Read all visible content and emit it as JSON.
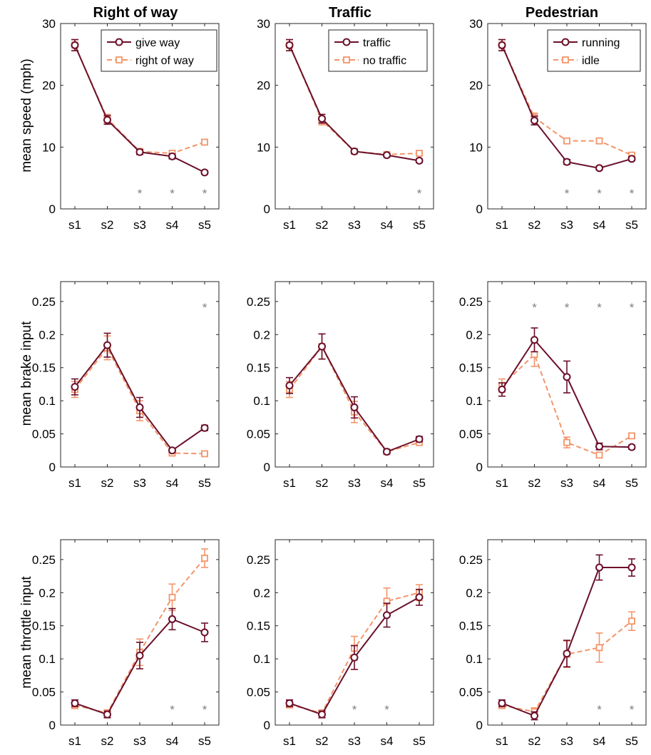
{
  "colors": {
    "dark": "#6b0f2a",
    "light": "#f4956a",
    "star": "#808080"
  },
  "categories": [
    "s1",
    "s2",
    "s3",
    "s4",
    "s5"
  ],
  "column_titles": [
    "Right of way",
    "Traffic",
    "Pedestrian"
  ],
  "row_ylabels": [
    "mean speed (mph)",
    "mean brake input",
    "mean throttle input"
  ],
  "chart_data": [
    {
      "type": "line",
      "row": 0,
      "col": 0,
      "title": "Right of way",
      "ylabel": "mean speed (mph)",
      "ylim": [
        0,
        30
      ],
      "yticks": [
        "0",
        "10",
        "20",
        "30"
      ],
      "categories": [
        "s1",
        "s2",
        "s3",
        "s4",
        "s5"
      ],
      "legend": true,
      "series": [
        {
          "name": "give way",
          "values": [
            26.5,
            14.4,
            9.2,
            8.5,
            5.9
          ],
          "err": [
            0.9,
            0.7,
            0.4,
            0.4,
            0.3
          ]
        },
        {
          "name": "right of way",
          "values": [
            26.5,
            14.6,
            9.3,
            9.0,
            10.8
          ],
          "err": [
            0.9,
            0.7,
            0.4,
            0.4,
            0.3
          ]
        }
      ],
      "significant": [
        "s3",
        "s4",
        "s5"
      ]
    },
    {
      "type": "line",
      "row": 0,
      "col": 1,
      "title": "Traffic",
      "ylabel": "",
      "ylim": [
        0,
        30
      ],
      "yticks": [
        "0",
        "10",
        "20",
        "30"
      ],
      "categories": [
        "s1",
        "s2",
        "s3",
        "s4",
        "s5"
      ],
      "legend": true,
      "series": [
        {
          "name": "traffic",
          "values": [
            26.5,
            14.6,
            9.3,
            8.7,
            7.8
          ],
          "err": [
            0.9,
            0.7,
            0.3,
            0.3,
            0.3
          ]
        },
        {
          "name": "no traffic",
          "values": [
            26.5,
            14.3,
            9.3,
            8.8,
            9.0
          ],
          "err": [
            0.9,
            0.7,
            0.3,
            0.3,
            0.3
          ]
        }
      ],
      "significant": [
        "s5"
      ]
    },
    {
      "type": "line",
      "row": 0,
      "col": 2,
      "title": "Pedestrian",
      "ylabel": "",
      "ylim": [
        0,
        30
      ],
      "yticks": [
        "0",
        "10",
        "20",
        "30"
      ],
      "categories": [
        "s1",
        "s2",
        "s3",
        "s4",
        "s5"
      ],
      "legend": true,
      "series": [
        {
          "name": "running",
          "values": [
            26.5,
            14.3,
            7.6,
            6.6,
            8.1
          ],
          "err": [
            0.9,
            0.7,
            0.4,
            0.3,
            0.3
          ]
        },
        {
          "name": "idle",
          "values": [
            26.5,
            14.8,
            11.0,
            11.0,
            8.7
          ],
          "err": [
            0.9,
            0.7,
            0.4,
            0.3,
            0.3
          ]
        }
      ],
      "significant": [
        "s3",
        "s4",
        "s5"
      ]
    },
    {
      "type": "line",
      "row": 1,
      "col": 0,
      "title": "",
      "ylabel": "mean brake input",
      "ylim": [
        0,
        0.28
      ],
      "yticks": [
        "0",
        "0.05",
        "0.1",
        "0.15",
        "0.2",
        "0.25"
      ],
      "categories": [
        "s1",
        "s2",
        "s3",
        "s4",
        "s5"
      ],
      "legend": false,
      "series": [
        {
          "name": "give way",
          "values": [
            0.121,
            0.184,
            0.09,
            0.025,
            0.059
          ],
          "err": [
            0.012,
            0.018,
            0.015,
            0.003,
            0.004
          ]
        },
        {
          "name": "right of way",
          "values": [
            0.117,
            0.18,
            0.085,
            0.021,
            0.02
          ],
          "err": [
            0.012,
            0.018,
            0.015,
            0.003,
            0.002
          ]
        }
      ],
      "significant": [
        "s5"
      ]
    },
    {
      "type": "line",
      "row": 1,
      "col": 1,
      "title": "",
      "ylabel": "",
      "ylim": [
        0,
        0.28
      ],
      "yticks": [
        "0",
        "0.05",
        "0.1",
        "0.15",
        "0.2",
        "0.25"
      ],
      "categories": [
        "s1",
        "s2",
        "s3",
        "s4",
        "s5"
      ],
      "legend": false,
      "series": [
        {
          "name": "traffic",
          "values": [
            0.123,
            0.182,
            0.09,
            0.023,
            0.042
          ],
          "err": [
            0.012,
            0.019,
            0.016,
            0.003,
            0.004
          ]
        },
        {
          "name": "no traffic",
          "values": [
            0.117,
            0.182,
            0.083,
            0.023,
            0.037
          ],
          "err": [
            0.012,
            0.019,
            0.016,
            0.003,
            0.004
          ]
        }
      ],
      "significant": []
    },
    {
      "type": "line",
      "row": 1,
      "col": 2,
      "title": "",
      "ylabel": "",
      "ylim": [
        0,
        0.28
      ],
      "yticks": [
        "0",
        "0.05",
        "0.1",
        "0.15",
        "0.2",
        "0.25"
      ],
      "categories": [
        "s1",
        "s2",
        "s3",
        "s4",
        "s5"
      ],
      "legend": false,
      "series": [
        {
          "name": "running",
          "values": [
            0.117,
            0.192,
            0.136,
            0.031,
            0.03
          ],
          "err": [
            0.01,
            0.018,
            0.024,
            0.005,
            0.003
          ]
        },
        {
          "name": "idle",
          "values": [
            0.123,
            0.17,
            0.037,
            0.018,
            0.047
          ],
          "err": [
            0.01,
            0.018,
            0.008,
            0.004,
            0.004
          ]
        }
      ],
      "significant": [
        "s2",
        "s3",
        "s4",
        "s5"
      ]
    },
    {
      "type": "line",
      "row": 2,
      "col": 0,
      "title": "",
      "ylabel": "mean throttle input",
      "ylim": [
        0,
        0.28
      ],
      "yticks": [
        "0",
        "0.05",
        "0.1",
        "0.15",
        "0.2",
        "0.25"
      ],
      "categories": [
        "s1",
        "s2",
        "s3",
        "s4",
        "s5"
      ],
      "legend": false,
      "series": [
        {
          "name": "give way",
          "values": [
            0.033,
            0.016,
            0.105,
            0.16,
            0.14
          ],
          "err": [
            0.005,
            0.005,
            0.02,
            0.016,
            0.014
          ]
        },
        {
          "name": "right of way",
          "values": [
            0.03,
            0.018,
            0.11,
            0.193,
            0.252
          ],
          "err": [
            0.005,
            0.005,
            0.02,
            0.02,
            0.014
          ]
        }
      ],
      "significant": [
        "s4",
        "s5"
      ]
    },
    {
      "type": "line",
      "row": 2,
      "col": 1,
      "title": "",
      "ylabel": "",
      "ylim": [
        0,
        0.28
      ],
      "yticks": [
        "0",
        "0.05",
        "0.1",
        "0.15",
        "0.2",
        "0.25"
      ],
      "categories": [
        "s1",
        "s2",
        "s3",
        "s4",
        "s5"
      ],
      "legend": false,
      "series": [
        {
          "name": "traffic",
          "values": [
            0.033,
            0.016,
            0.102,
            0.166,
            0.193
          ],
          "err": [
            0.005,
            0.005,
            0.018,
            0.018,
            0.012
          ]
        },
        {
          "name": "no traffic",
          "values": [
            0.031,
            0.018,
            0.116,
            0.187,
            0.2
          ],
          "err": [
            0.005,
            0.005,
            0.018,
            0.02,
            0.012
          ]
        }
      ],
      "significant": [
        "s3",
        "s4"
      ]
    },
    {
      "type": "line",
      "row": 2,
      "col": 2,
      "title": "",
      "ylabel": "",
      "ylim": [
        0,
        0.28
      ],
      "yticks": [
        "0",
        "0.05",
        "0.1",
        "0.15",
        "0.2",
        "0.25"
      ],
      "categories": [
        "s1",
        "s2",
        "s3",
        "s4",
        "s5"
      ],
      "legend": false,
      "series": [
        {
          "name": "running",
          "values": [
            0.033,
            0.014,
            0.108,
            0.238,
            0.238
          ],
          "err": [
            0.005,
            0.006,
            0.02,
            0.019,
            0.013
          ]
        },
        {
          "name": "idle",
          "values": [
            0.03,
            0.02,
            0.107,
            0.117,
            0.157
          ],
          "err": [
            0.005,
            0.006,
            0.02,
            0.022,
            0.014
          ]
        }
      ],
      "significant": [
        "s4",
        "s5"
      ]
    }
  ]
}
